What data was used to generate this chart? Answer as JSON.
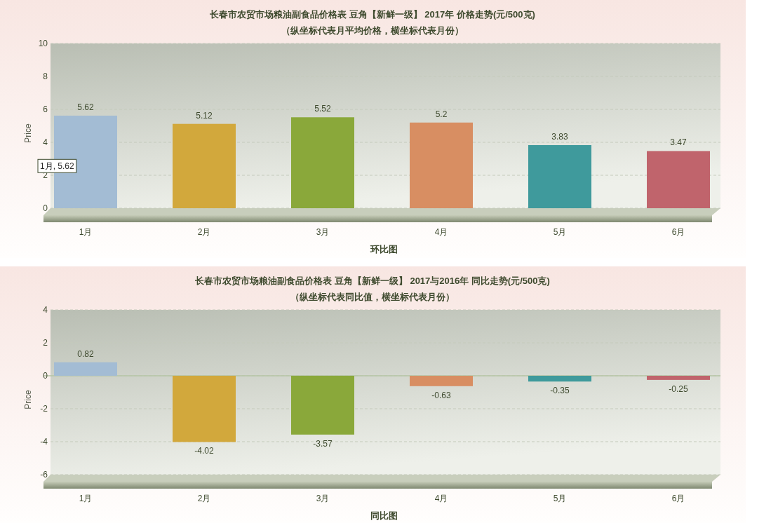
{
  "chart_data": [
    {
      "type": "bar",
      "title": "长春市农贸市场粮油副食品价格表 豆角【新鲜一级】 2017年 价格走势(元/500克)",
      "subtitle": "（纵坐标代表月平均价格，横坐标代表月份）",
      "xlabel": "环比图",
      "ylabel": "Price",
      "categories": [
        "1月",
        "2月",
        "3月",
        "4月",
        "5月",
        "6月"
      ],
      "values": [
        5.62,
        5.12,
        5.52,
        5.2,
        3.83,
        3.47
      ],
      "colors": [
        "#a3bcd4",
        "#d2a83c",
        "#8aa83a",
        "#d88e62",
        "#3f9a9c",
        "#c0646c"
      ],
      "ylim": [
        0,
        10
      ],
      "yticks": [
        0,
        2,
        4,
        6,
        8,
        10
      ],
      "grid": "y",
      "data_labels": true,
      "annotations": [
        "1月, 5.62"
      ]
    },
    {
      "type": "bar",
      "title": "长春市农贸市场粮油副食品价格表 豆角【新鲜一级】 2017与2016年 同比走势(元/500克)",
      "subtitle": "（纵坐标代表同比值，横坐标代表月份）",
      "xlabel": "同比图",
      "ylabel": "Price",
      "categories": [
        "1月",
        "2月",
        "3月",
        "4月",
        "5月",
        "6月"
      ],
      "values": [
        0.82,
        -4.02,
        -3.57,
        -0.63,
        -0.35,
        -0.25
      ],
      "colors": [
        "#a3bcd4",
        "#d2a83c",
        "#8aa83a",
        "#d88e62",
        "#3f9a9c",
        "#c0646c"
      ],
      "ylim": [
        -6,
        4
      ],
      "yticks": [
        -6,
        -4,
        -2,
        0,
        2,
        4
      ],
      "grid": "y",
      "data_labels": true
    }
  ]
}
